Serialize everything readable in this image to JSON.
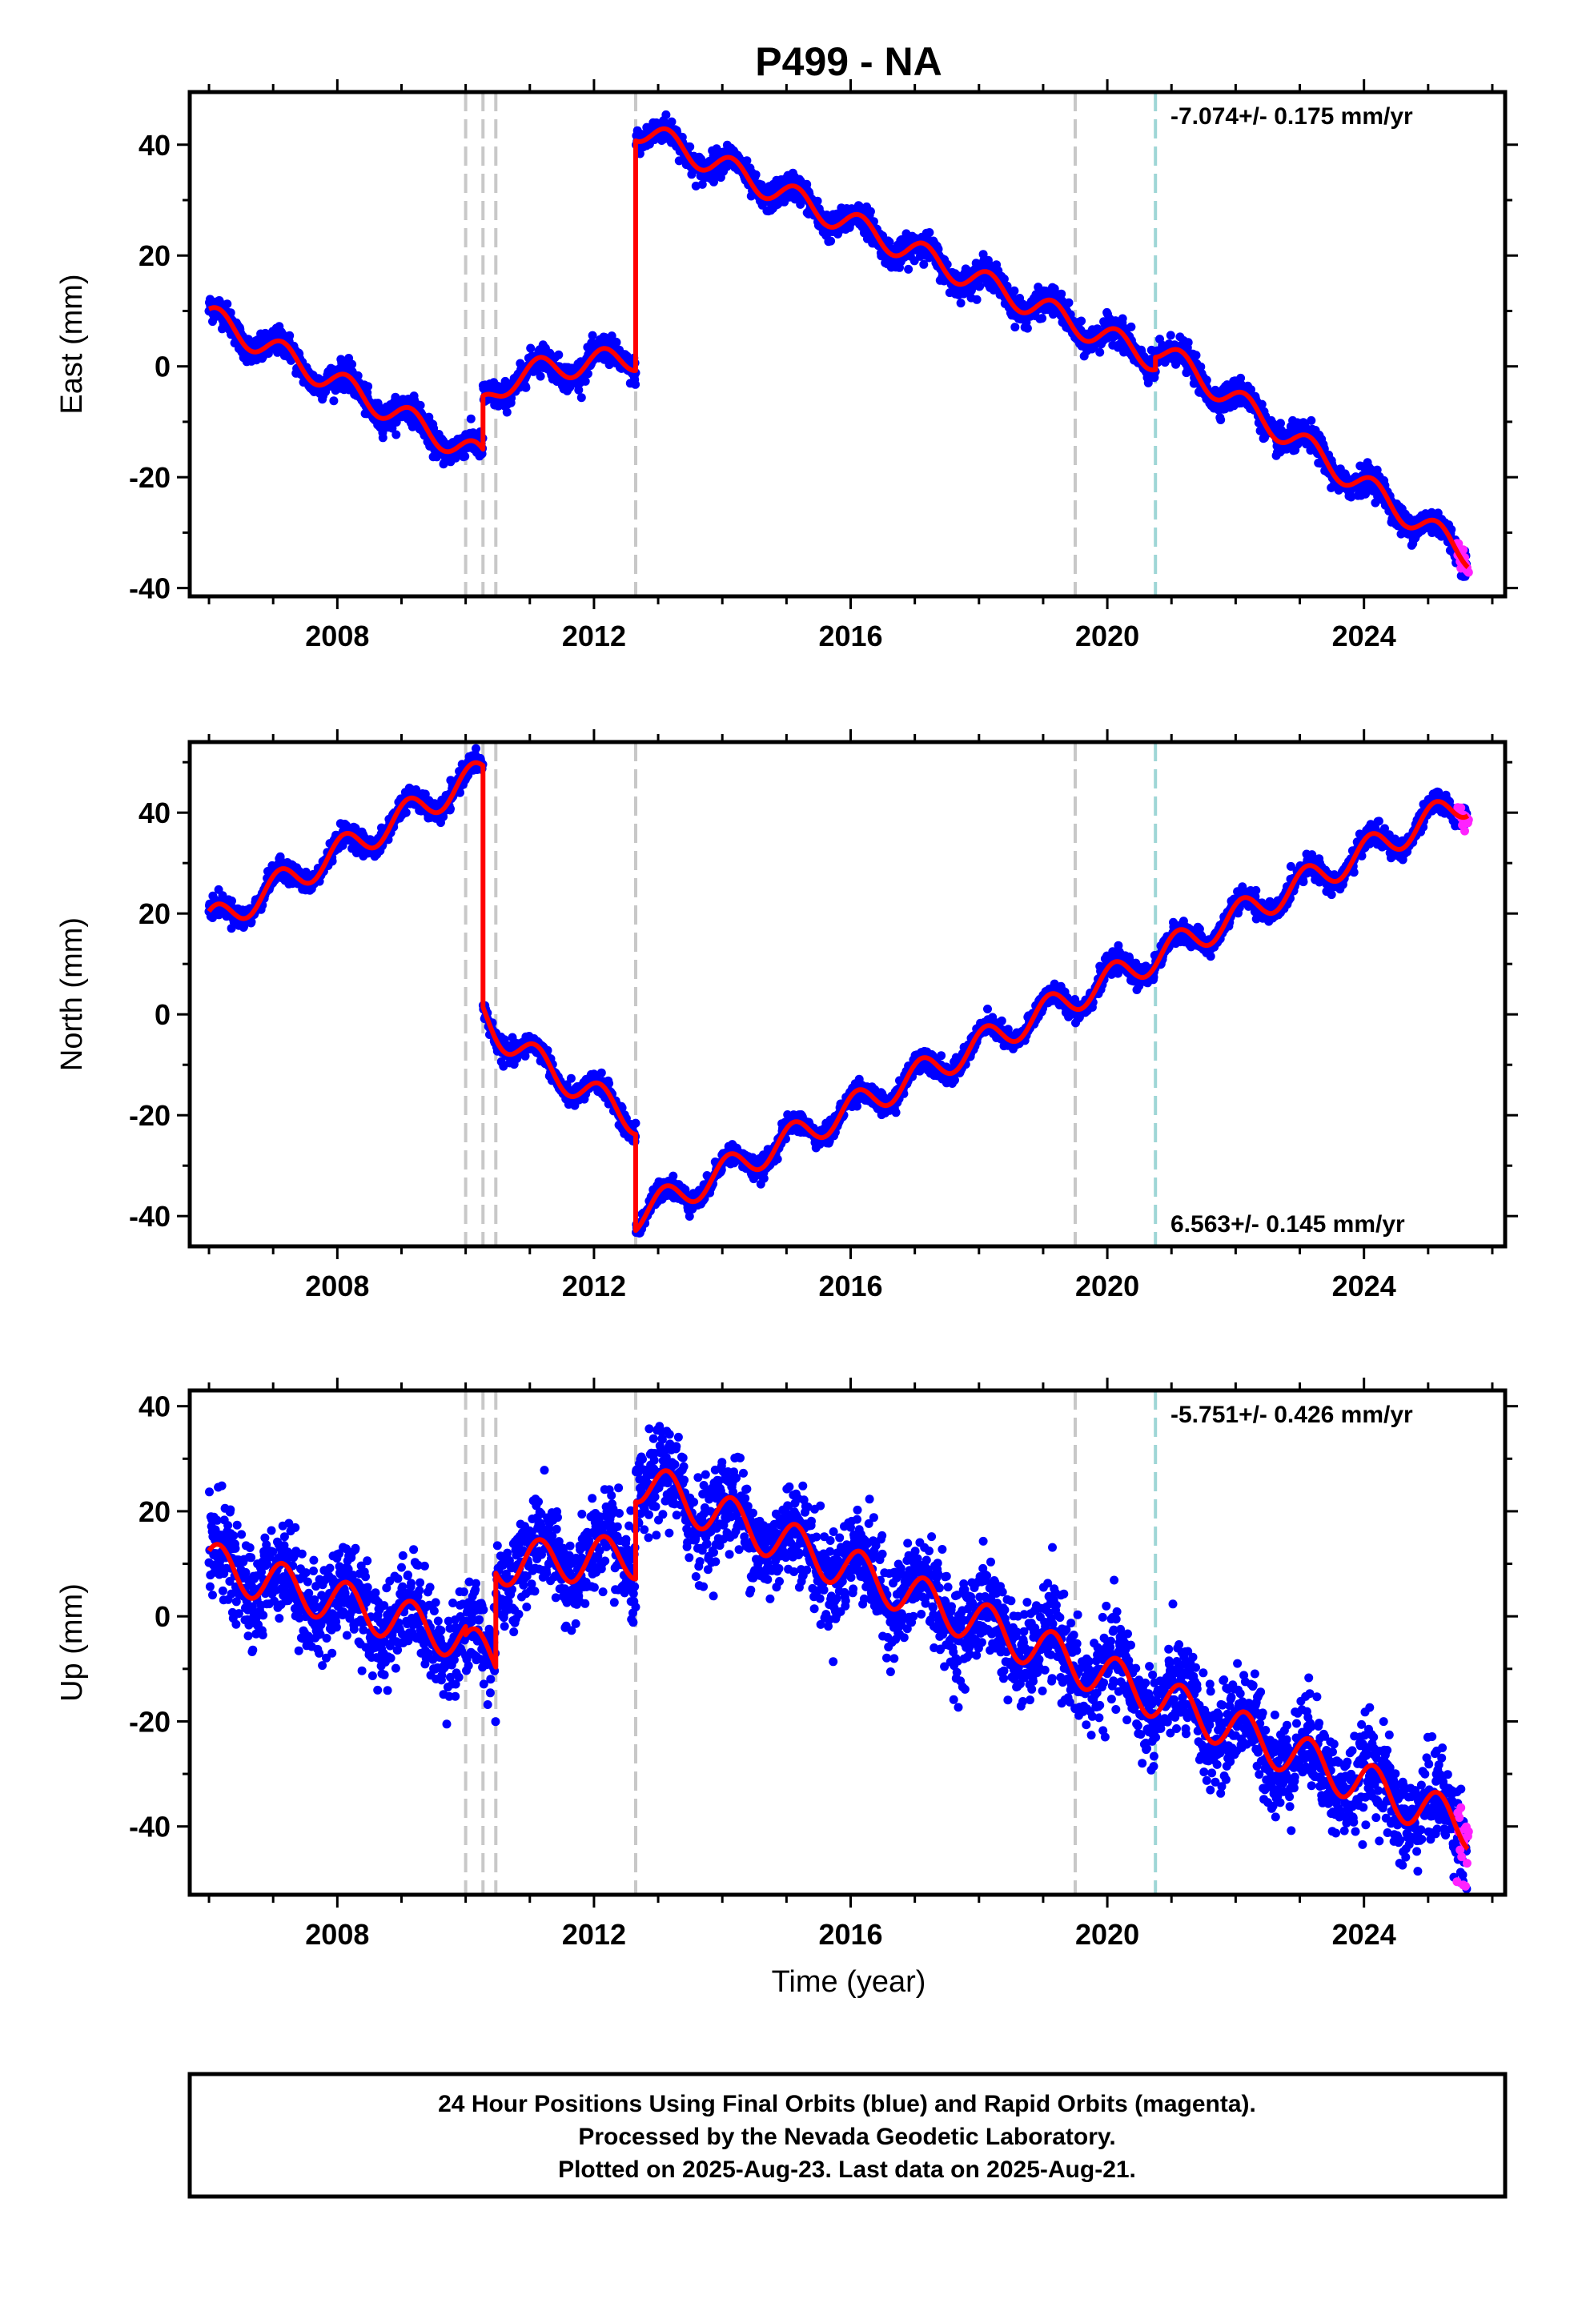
{
  "title": "P499 - NA",
  "xlabel": "Time (year)",
  "colors": {
    "final": "#0000ff",
    "rapid": "#ff22ff",
    "model": "#ff0000",
    "event": "#c8c8c8",
    "antenna": "#9ed6d6"
  },
  "footer": {
    "line1": "24 Hour Positions Using Final Orbits (blue) and Rapid Orbits (magenta).",
    "line2": "Processed by the Nevada Geodetic Laboratory.",
    "line3": "Plotted on 2025-Aug-23. Last data on 2025-Aug-21."
  },
  "chart_data": [
    {
      "type": "scatter",
      "component": "East",
      "ylabel": "East (mm)",
      "rate_label": "-7.074+/- 0.175 mm/yr",
      "rate_position": "top-right",
      "xlim": [
        2005.7,
        2026.2
      ],
      "ylim": [
        -41.5,
        49.5
      ],
      "xticks": [
        2008,
        2012,
        2016,
        2020,
        2024
      ],
      "yticks": [
        -40,
        -20,
        0,
        20,
        40
      ],
      "event_lines": [
        2010.0,
        2010.27,
        2010.47,
        2012.65,
        2019.5
      ],
      "antenna_lines": [
        2020.75
      ],
      "data_range": [
        2006.0,
        2025.6
      ],
      "rapid_range": [
        2025.45,
        2025.64
      ],
      "model": {
        "segments": [
          {
            "t0": 2006.0,
            "t1": 2010.27,
            "a": 9,
            "v": -6.0
          },
          {
            "t0": 2010.27,
            "t1": 2012.65,
            "a": -7,
            "v": 1.2,
            "c": 0.95
          },
          {
            "t0": 2012.65,
            "t1": 2020.75,
            "a": 43,
            "v": -5.15
          },
          {
            "t0": 2020.75,
            "t1": 2025.62,
            "a": 3.5,
            "v": -7.7
          }
        ],
        "annual_amplitude": 2.3,
        "annual_phase": 0.1
      },
      "scatter_sd": 1.2
    },
    {
      "type": "scatter",
      "component": "North",
      "ylabel": "North (mm)",
      "rate_label": "6.563+/- 0.145 mm/yr",
      "rate_position": "bottom-right",
      "xlim": [
        2005.7,
        2026.2
      ],
      "ylim": [
        -46,
        54
      ],
      "xticks": [
        2008,
        2012,
        2016,
        2020,
        2024
      ],
      "yticks": [
        -40,
        -20,
        0,
        20,
        40
      ],
      "event_lines": [
        2010.0,
        2010.27,
        2010.47,
        2012.65,
        2019.5
      ],
      "antenna_lines": [
        2020.75
      ],
      "data_range": [
        2006.0,
        2025.6
      ],
      "rapid_range": [
        2025.45,
        2025.64
      ],
      "model": {
        "segments": [
          {
            "t0": 2006.0,
            "t1": 2010.27,
            "a": 18,
            "v": 7.0
          },
          {
            "t0": 2010.27,
            "t1": 2012.65,
            "a": 0,
            "v": -7.4,
            "c": 0.55
          },
          {
            "t0": 2012.65,
            "t1": 2025.62,
            "a": -40,
            "v": 6.35
          }
        ],
        "annual_amplitude": 3.0,
        "annual_phase": 0.15
      },
      "scatter_sd": 1.0
    },
    {
      "type": "scatter",
      "component": "Up",
      "ylabel": "Up (mm)",
      "rate_label": "-5.751+/- 0.426 mm/yr",
      "rate_position": "top-right",
      "xlim": [
        2005.7,
        2026.2
      ],
      "ylim": [
        -53,
        43
      ],
      "xticks": [
        2008,
        2012,
        2016,
        2020,
        2024
      ],
      "yticks": [
        -40,
        -20,
        0,
        20,
        40
      ],
      "event_lines": [
        2010.0,
        2010.27,
        2010.47,
        2012.65,
        2019.5
      ],
      "antenna_lines": [
        2020.75
      ],
      "data_range": [
        2006.0,
        2025.6
      ],
      "rapid_range": [
        2025.45,
        2025.64
      ],
      "model": {
        "segments": [
          {
            "t0": 2006.0,
            "t1": 2010.0,
            "a": 10,
            "v": -3.6
          },
          {
            "t0": 2010.0,
            "t1": 2010.47,
            "a": -6,
            "v": -4.0
          },
          {
            "t0": 2010.47,
            "t1": 2012.65,
            "a": 10,
            "v": 0.6
          },
          {
            "t0": 2012.65,
            "t1": 2025.62,
            "a": 26,
            "v": -5.1
          }
        ],
        "annual_amplitude": 4.2,
        "annual_phase": 0.1
      },
      "scatter_sd": 4.5
    }
  ]
}
